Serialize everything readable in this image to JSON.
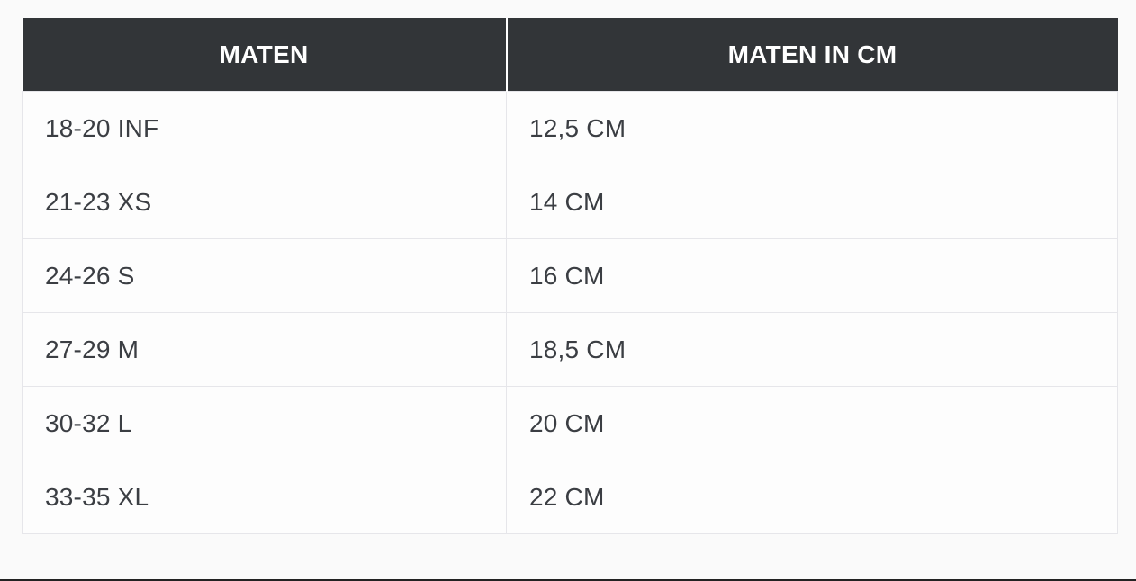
{
  "table": {
    "headers": [
      "MATEN",
      "MATEN IN CM"
    ],
    "rows": [
      [
        "18-20 INF",
        "12,5 CM"
      ],
      [
        "21-23 XS",
        "14 CM"
      ],
      [
        "24-26 S",
        "16 CM"
      ],
      [
        "27-29 M",
        "18,5 CM"
      ],
      [
        "30-32 L",
        "20 CM"
      ],
      [
        "33-35 XL",
        "22 CM"
      ]
    ]
  },
  "colors": {
    "header_bg": "#323538",
    "header_text": "#ffffff",
    "cell_text": "#3b3e43",
    "border": "#e6e6ea"
  }
}
